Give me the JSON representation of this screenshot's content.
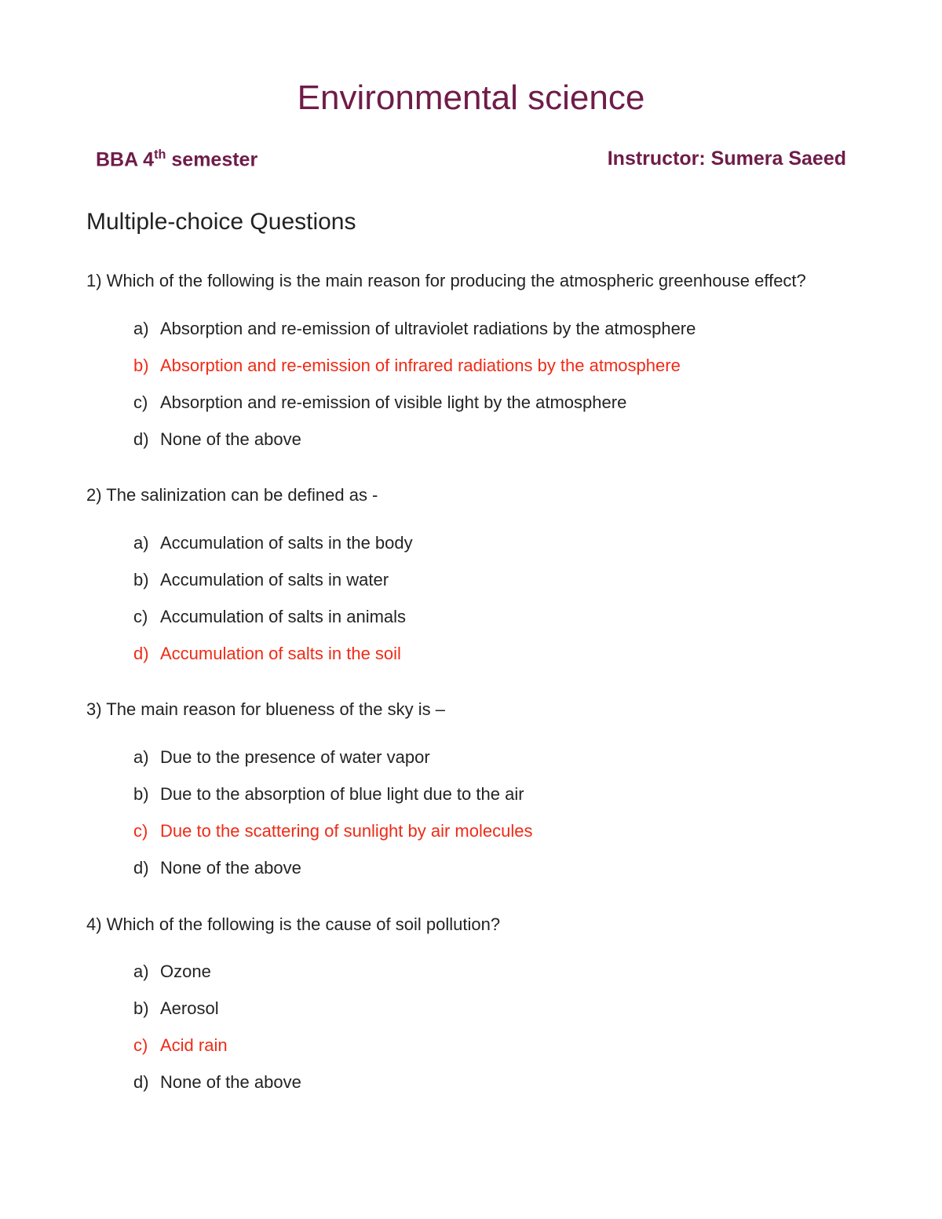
{
  "colors": {
    "heading": "#6f1c49",
    "body": "#232323",
    "correct": "#ef2b16",
    "background": "#ffffff"
  },
  "typography": {
    "title_fontsize": 44,
    "meta_fontsize": 25,
    "section_fontsize": 30,
    "body_fontsize": 22,
    "font_family": "Segoe UI"
  },
  "title": "Environmental science",
  "meta": {
    "left_prefix": "BBA 4",
    "left_sup": "th",
    "left_suffix": " semester",
    "right": "Instructor:  Sumera Saeed"
  },
  "section_heading": "Multiple-choice Questions",
  "questions": [
    {
      "number": "1)",
      "text": "Which of the following is the main reason for producing the atmospheric greenhouse effect?",
      "options": [
        {
          "letter": "a)",
          "text": "Absorption and re-emission of ultraviolet radiations by the atmosphere",
          "correct": false
        },
        {
          "letter": "b)",
          "text": "Absorption and re-emission of infrared radiations by the atmosphere",
          "correct": true
        },
        {
          "letter": "c)",
          "text": "Absorption and re-emission of visible light by the atmosphere",
          "correct": false
        },
        {
          "letter": "d)",
          "text": "None of the above",
          "correct": false
        }
      ]
    },
    {
      "number": "2)",
      "text": "The salinization can be defined as -",
      "options": [
        {
          "letter": "a)",
          "text": "Accumulation of salts in the body",
          "correct": false
        },
        {
          "letter": "b)",
          "text": "Accumulation of salts in water",
          "correct": false
        },
        {
          "letter": "c)",
          "text": "Accumulation of salts in animals",
          "correct": false
        },
        {
          "letter": "d)",
          "text": "Accumulation of salts in the soil",
          "correct": true
        }
      ]
    },
    {
      "number": "3)",
      "text": "The main reason for blueness of the sky is –",
      "options": [
        {
          "letter": "a)",
          "text": "Due to the presence of water vapor",
          "correct": false
        },
        {
          "letter": "b)",
          "text": "Due to the absorption of blue light due to the air",
          "correct": false
        },
        {
          "letter": "c)",
          "text": "Due to the scattering of sunlight by air molecules",
          "correct": true
        },
        {
          "letter": "d)",
          "text": "None of the above",
          "correct": false
        }
      ]
    },
    {
      "number": "4)",
      "text": "Which of the following is the cause of soil pollution?",
      "options": [
        {
          "letter": "a)",
          "text": "Ozone",
          "correct": false
        },
        {
          "letter": "b)",
          "text": "Aerosol",
          "correct": false
        },
        {
          "letter": "c)",
          "text": "Acid rain",
          "correct": true
        },
        {
          "letter": "d)",
          "text": "None of the above",
          "correct": false
        }
      ]
    }
  ]
}
